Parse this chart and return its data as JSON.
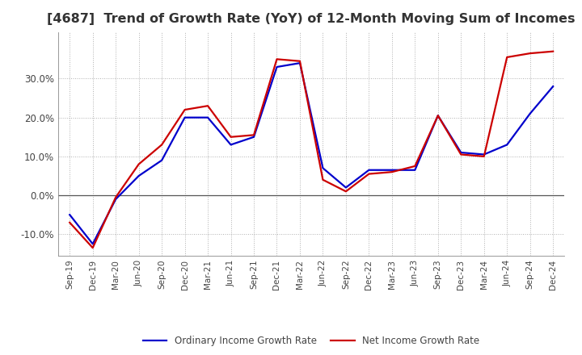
{
  "title": "[4687]  Trend of Growth Rate (YoY) of 12-Month Moving Sum of Incomes",
  "title_fontsize": 11.5,
  "legend_labels": [
    "Ordinary Income Growth Rate",
    "Net Income Growth Rate"
  ],
  "line_colors": [
    "#0000cc",
    "#cc0000"
  ],
  "x_labels": [
    "Sep-19",
    "Dec-19",
    "Mar-20",
    "Jun-20",
    "Sep-20",
    "Dec-20",
    "Mar-21",
    "Jun-21",
    "Sep-21",
    "Dec-21",
    "Mar-22",
    "Jun-22",
    "Sep-22",
    "Dec-22",
    "Mar-23",
    "Jun-23",
    "Sep-23",
    "Dec-23",
    "Mar-24",
    "Jun-24",
    "Sep-24",
    "Dec-24"
  ],
  "ordinary_income": [
    -5.0,
    -12.5,
    -1.0,
    5.0,
    9.0,
    20.0,
    20.0,
    13.0,
    15.0,
    33.0,
    34.0,
    7.0,
    2.0,
    6.5,
    6.5,
    6.5,
    20.5,
    11.0,
    10.5,
    13.0,
    21.0,
    28.0
  ],
  "net_income": [
    -7.0,
    -13.5,
    -0.5,
    8.0,
    13.0,
    22.0,
    23.0,
    15.0,
    15.5,
    35.0,
    34.5,
    4.0,
    1.0,
    5.5,
    6.0,
    7.5,
    20.5,
    10.5,
    10.0,
    35.5,
    36.5,
    37.0
  ],
  "ylim": [
    -15.5,
    42.0
  ],
  "yticks": [
    -10.0,
    0.0,
    10.0,
    20.0,
    30.0
  ],
  "background_color": "#ffffff",
  "grid_color": "#b0b0b0",
  "line_width": 1.6,
  "zero_line_color": "#555555"
}
